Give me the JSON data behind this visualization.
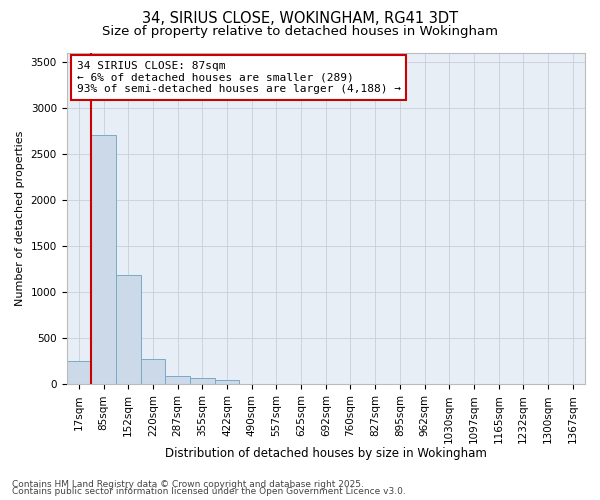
{
  "title1": "34, SIRIUS CLOSE, WOKINGHAM, RG41 3DT",
  "title2": "Size of property relative to detached houses in Wokingham",
  "xlabel": "Distribution of detached houses by size in Wokingham",
  "ylabel": "Number of detached properties",
  "categories": [
    "17sqm",
    "85sqm",
    "152sqm",
    "220sqm",
    "287sqm",
    "355sqm",
    "422sqm",
    "490sqm",
    "557sqm",
    "625sqm",
    "692sqm",
    "760sqm",
    "827sqm",
    "895sqm",
    "962sqm",
    "1030sqm",
    "1097sqm",
    "1165sqm",
    "1232sqm",
    "1300sqm",
    "1367sqm"
  ],
  "values": [
    255,
    2700,
    1190,
    280,
    90,
    65,
    42,
    0,
    0,
    0,
    0,
    0,
    0,
    0,
    0,
    0,
    0,
    0,
    0,
    0,
    0
  ],
  "bar_color": "#ccd9e8",
  "bar_edge_color": "#7aaac8",
  "bar_linewidth": 0.7,
  "grid_color": "#c8d0de",
  "background_color": "#e8eef6",
  "vline_color": "#cc0000",
  "annotation_line1": "34 SIRIUS CLOSE: 87sqm",
  "annotation_line2": "← 6% of detached houses are smaller (289)",
  "annotation_line3": "93% of semi-detached houses are larger (4,188) →",
  "annotation_box_color": "#cc0000",
  "ylim": [
    0,
    3600
  ],
  "yticks": [
    0,
    500,
    1000,
    1500,
    2000,
    2500,
    3000,
    3500
  ],
  "footer_line1": "Contains HM Land Registry data © Crown copyright and database right 2025.",
  "footer_line2": "Contains public sector information licensed under the Open Government Licence v3.0.",
  "title1_fontsize": 10.5,
  "title2_fontsize": 9.5,
  "xlabel_fontsize": 8.5,
  "ylabel_fontsize": 8,
  "tick_fontsize": 7.5,
  "annotation_fontsize": 8,
  "footer_fontsize": 6.5
}
